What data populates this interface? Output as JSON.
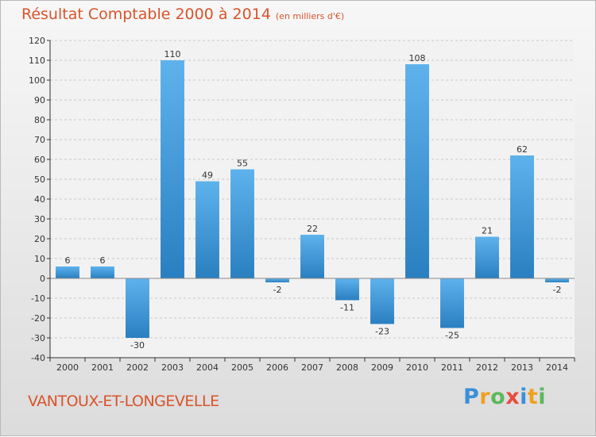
{
  "header": {
    "title": "Résultat Comptable 2000 à 2014",
    "subtitle": "(en milliers d'€)"
  },
  "footer": {
    "commune": "VANTOUX-ET-LONGEVELLE",
    "logo_letters": [
      "P",
      "r",
      "o",
      "x",
      "i",
      "t",
      "i"
    ],
    "logo_colors": [
      "#3a8fd8",
      "#f0a020",
      "#5cb85c",
      "#e84c3d",
      "#3a8fd8",
      "#f0a020",
      "#5cb85c"
    ]
  },
  "chart_data": {
    "type": "bar",
    "title": "Résultat Comptable 2000 à 2014",
    "subtitle": "(en milliers d'€)",
    "xlabel": "",
    "ylabel": "",
    "categories": [
      "2000",
      "2001",
      "2002",
      "2003",
      "2004",
      "2005",
      "2006",
      "2007",
      "2008",
      "2009",
      "2010",
      "2011",
      "2012",
      "2013",
      "2014"
    ],
    "values": [
      6,
      6,
      -30,
      110,
      49,
      55,
      -2,
      22,
      -11,
      -23,
      108,
      -25,
      21,
      62,
      -2
    ],
    "ylim": [
      -40,
      120
    ],
    "yticks": [
      -40,
      -30,
      -20,
      -10,
      0,
      10,
      20,
      30,
      40,
      50,
      60,
      70,
      80,
      90,
      100,
      110,
      120
    ],
    "grid": true,
    "legend": "none",
    "colors": {
      "bar_top": "#5eb2ec",
      "bar_bottom": "#2a7fc0",
      "axis": "#333333",
      "grid": "#c8c8c8"
    }
  }
}
